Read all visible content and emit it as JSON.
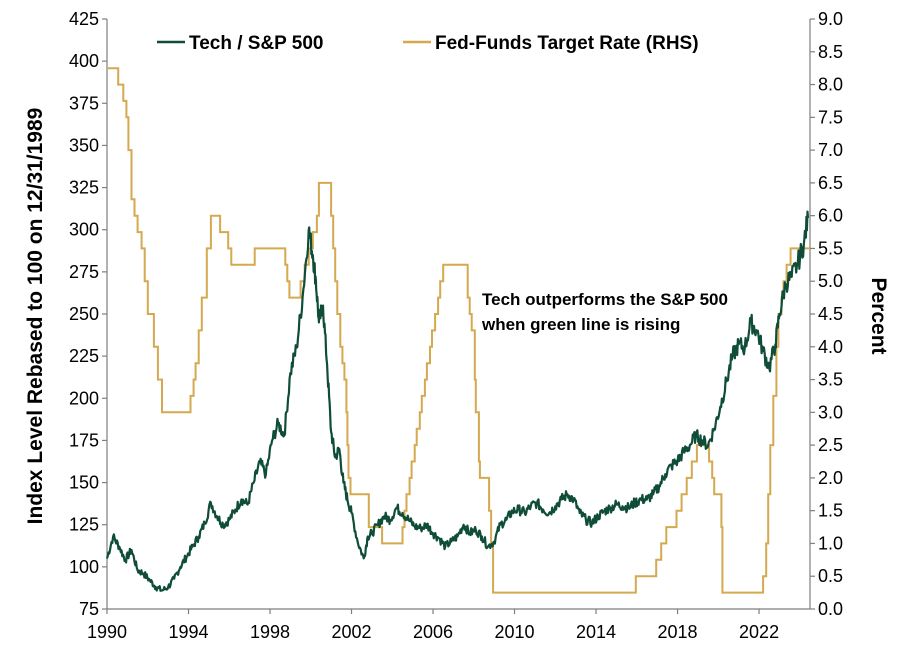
{
  "chart_data": {
    "type": "line",
    "title": "",
    "colors": {
      "tech": "#0f4d38",
      "fed": "#d4a94f",
      "axis": "#7f7f7f"
    },
    "x_axis": {
      "ticks": [
        "1990",
        "1994",
        "1998",
        "2002",
        "2006",
        "2010",
        "2014",
        "2018",
        "2022"
      ],
      "range": [
        1990,
        2024.5
      ]
    },
    "y_left": {
      "label": "Index Level Rebased to 100 on 12/31/1989",
      "ticks": [
        "425",
        "400",
        "375",
        "350",
        "325",
        "300",
        "275",
        "250",
        "225",
        "200",
        "175",
        "150",
        "125",
        "100",
        "75"
      ],
      "range": [
        75,
        425
      ]
    },
    "y_right": {
      "label": "Percent",
      "ticks": [
        "9.0",
        "8.5",
        "8.0",
        "7.5",
        "7.0",
        "6.5",
        "6.0",
        "5.5",
        "5.0",
        "4.5",
        "4.0",
        "3.5",
        "3.0",
        "2.5",
        "2.0",
        "1.5",
        "1.0",
        "0.5",
        "0.0"
      ],
      "range": [
        0,
        9
      ]
    },
    "legend": {
      "position": "top",
      "items": [
        "Tech / S&P 500",
        "Fed-Funds Target Rate (RHS)"
      ]
    },
    "annotation": [
      "Tech outperforms the S&P 500",
      "when green line is rising"
    ],
    "series": [
      {
        "name": "Tech / S&P 500",
        "axis": "left",
        "x": [
          1990.0,
          1990.3,
          1990.6,
          1990.9,
          1991.2,
          1991.5,
          1991.8,
          1992.1,
          1992.4,
          1992.7,
          1993.0,
          1993.3,
          1993.6,
          1993.9,
          1994.2,
          1994.5,
          1994.8,
          1995.1,
          1995.4,
          1995.7,
          1996.0,
          1996.3,
          1996.6,
          1996.9,
          1997.2,
          1997.5,
          1997.8,
          1998.1,
          1998.4,
          1998.7,
          1999.0,
          1999.3,
          1999.6,
          1999.9,
          2000.1,
          2000.25,
          2000.4,
          2000.6,
          2000.8,
          2001.0,
          2001.2,
          2001.4,
          2001.6,
          2001.8,
          2002.0,
          2002.3,
          2002.6,
          2002.8,
          2003.0,
          2003.3,
          2003.6,
          2003.9,
          2004.2,
          2004.5,
          2004.8,
          2005.1,
          2005.4,
          2005.7,
          2006.0,
          2006.3,
          2006.6,
          2006.9,
          2007.2,
          2007.5,
          2007.8,
          2008.1,
          2008.4,
          2008.7,
          2009.0,
          2009.3,
          2009.6,
          2009.9,
          2010.2,
          2010.5,
          2010.8,
          2011.1,
          2011.4,
          2011.7,
          2012.0,
          2012.3,
          2012.6,
          2012.9,
          2013.2,
          2013.5,
          2013.8,
          2014.1,
          2014.4,
          2014.7,
          2015.0,
          2015.3,
          2015.6,
          2015.9,
          2016.2,
          2016.5,
          2016.8,
          2017.1,
          2017.4,
          2017.7,
          2018.0,
          2018.3,
          2018.6,
          2018.9,
          2019.2,
          2019.5,
          2019.8,
          2020.1,
          2020.4,
          2020.7,
          2021.0,
          2021.3,
          2021.6,
          2021.9,
          2022.2,
          2022.5,
          2022.8,
          2023.0,
          2023.3,
          2023.6,
          2023.9,
          2024.2,
          2024.4
        ],
        "values": [
          105,
          118,
          112,
          104,
          110,
          98,
          96,
          92,
          88,
          86,
          88,
          93,
          100,
          106,
          112,
          118,
          126,
          138,
          130,
          125,
          128,
          134,
          140,
          137,
          150,
          162,
          155,
          175,
          185,
          178,
          215,
          230,
          260,
          300,
          285,
          270,
          245,
          255,
          220,
          180,
          165,
          170,
          150,
          140,
          132,
          115,
          105,
          118,
          120,
          125,
          130,
          128,
          135,
          132,
          128,
          124,
          123,
          125,
          120,
          117,
          112,
          115,
          118,
          125,
          120,
          122,
          118,
          112,
          115,
          125,
          128,
          133,
          134,
          132,
          136,
          138,
          134,
          132,
          136,
          140,
          143,
          140,
          132,
          128,
          126,
          130,
          133,
          135,
          137,
          136,
          135,
          138,
          140,
          140,
          143,
          148,
          155,
          160,
          163,
          168,
          172,
          178,
          175,
          172,
          182,
          195,
          210,
          225,
          232,
          230,
          245,
          240,
          228,
          218,
          232,
          250,
          268,
          272,
          280,
          292,
          307
        ]
      },
      {
        "name": "Fed-Funds Target Rate (RHS)",
        "axis": "right",
        "step": true,
        "x": [
          1990.0,
          1990.55,
          1990.8,
          1990.95,
          1991.05,
          1991.2,
          1991.35,
          1991.5,
          1991.7,
          1991.85,
          1992.0,
          1992.3,
          1992.5,
          1992.7,
          1994.1,
          1994.25,
          1994.35,
          1994.5,
          1994.65,
          1994.9,
          1995.1,
          1995.55,
          1995.95,
          1996.1,
          1997.25,
          1998.75,
          1998.85,
          1998.95,
          1999.5,
          1999.7,
          1999.9,
          2000.1,
          2000.3,
          2000.4,
          2001.0,
          2001.1,
          2001.2,
          2001.3,
          2001.45,
          2001.55,
          2001.65,
          2001.75,
          2001.8,
          2001.85,
          2001.95,
          2002.85,
          2003.5,
          2004.5,
          2004.6,
          2004.7,
          2004.85,
          2004.95,
          2005.1,
          2005.2,
          2005.35,
          2005.45,
          2005.6,
          2005.7,
          2005.85,
          2005.95,
          2006.1,
          2006.25,
          2006.35,
          2006.5,
          2007.7,
          2007.8,
          2007.9,
          2008.05,
          2008.1,
          2008.25,
          2008.3,
          2008.75,
          2008.85,
          2008.95,
          2015.95,
          2016.95,
          2017.2,
          2017.45,
          2017.95,
          2018.2,
          2018.45,
          2018.7,
          2018.95,
          2019.55,
          2019.7,
          2019.8,
          2020.15,
          2020.2,
          2022.2,
          2022.35,
          2022.45,
          2022.55,
          2022.7,
          2022.85,
          2022.95,
          2023.1,
          2023.2,
          2023.35,
          2023.55,
          2024.5
        ],
        "values": [
          8.25,
          8.0,
          7.75,
          7.5,
          7.0,
          6.25,
          6.0,
          5.75,
          5.5,
          5.0,
          4.5,
          4.0,
          3.5,
          3.0,
          3.25,
          3.5,
          3.75,
          4.25,
          4.75,
          5.5,
          6.0,
          5.75,
          5.5,
          5.25,
          5.5,
          5.25,
          5.0,
          4.75,
          5.0,
          5.25,
          5.5,
          5.75,
          6.0,
          6.5,
          6.0,
          5.5,
          5.0,
          4.5,
          4.0,
          3.75,
          3.5,
          3.0,
          2.5,
          2.0,
          1.75,
          1.25,
          1.0,
          1.25,
          1.5,
          1.75,
          2.0,
          2.25,
          2.5,
          2.75,
          3.0,
          3.25,
          3.5,
          3.75,
          4.0,
          4.25,
          4.5,
          4.75,
          5.0,
          5.25,
          4.75,
          4.5,
          4.25,
          3.5,
          3.0,
          2.25,
          2.0,
          1.5,
          1.0,
          0.25,
          0.5,
          0.75,
          1.0,
          1.25,
          1.5,
          1.75,
          2.0,
          2.25,
          2.5,
          2.25,
          2.0,
          1.75,
          1.25,
          0.25,
          0.5,
          1.0,
          1.75,
          2.5,
          3.25,
          4.0,
          4.5,
          4.75,
          5.0,
          5.25,
          5.5,
          5.5
        ]
      }
    ]
  }
}
